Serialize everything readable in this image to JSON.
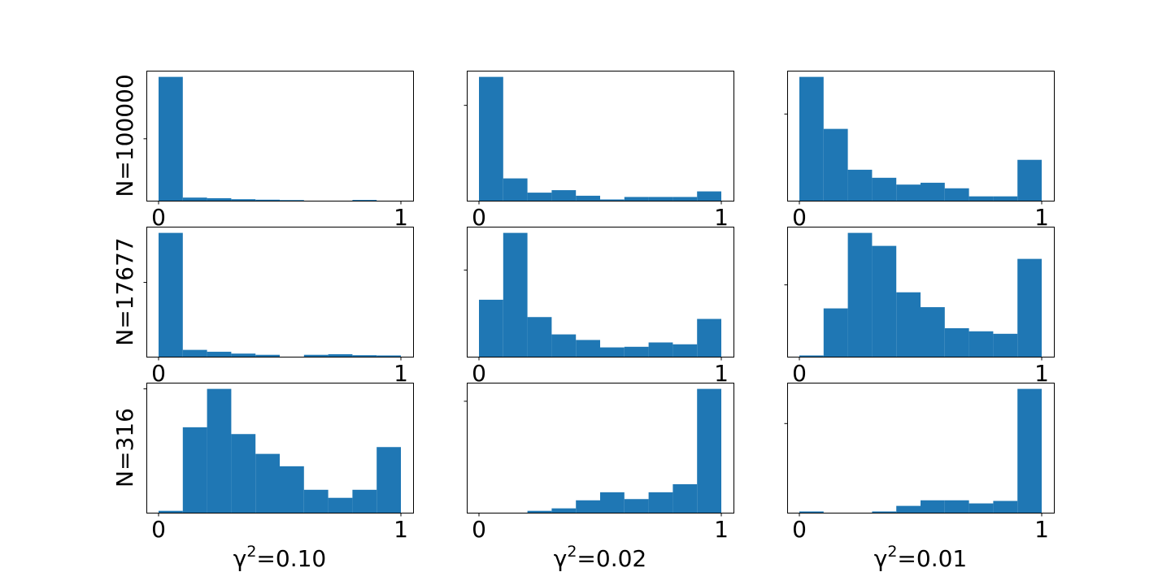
{
  "chart_data": {
    "type": "bar",
    "layout": "grid 3x3",
    "bar_color": "#1f77b4",
    "bins": 10,
    "x_range": [
      0,
      1
    ],
    "xticks": [
      0,
      1
    ],
    "xtick_labels": [
      "0",
      "1"
    ],
    "row_labels": [
      "N=100000",
      "N=17677",
      "N=316"
    ],
    "col_labels": [
      {
        "base": "γ",
        "sup": "2",
        "rest": "=0.10"
      },
      {
        "base": "γ",
        "sup": "2",
        "rest": "=0.02"
      },
      {
        "base": "γ",
        "sup": "2",
        "rest": "=0.01"
      }
    ],
    "panels": [
      {
        "row": 0,
        "col": 0,
        "ylim": [
          0,
          1.05
        ],
        "ytick": 0.5,
        "values": [
          1.0,
          0.025,
          0.02,
          0.012,
          0.008,
          0.005,
          0.0,
          0.0,
          0.006,
          0.0
        ]
      },
      {
        "row": 0,
        "col": 1,
        "ylim": [
          0,
          1.05
        ],
        "ytick": 0.77,
        "values": [
          1.0,
          0.18,
          0.065,
          0.085,
          0.04,
          0.01,
          0.03,
          0.03,
          0.03,
          0.075
        ]
      },
      {
        "row": 0,
        "col": 2,
        "ylim": [
          0,
          1.05
        ],
        "ytick": 0.7,
        "values": [
          1.0,
          0.58,
          0.25,
          0.185,
          0.13,
          0.145,
          0.1,
          0.035,
          0.035,
          0.33
        ]
      },
      {
        "row": 1,
        "col": 0,
        "ylim": [
          0,
          1.05
        ],
        "ytick": 0.6,
        "values": [
          1.0,
          0.055,
          0.04,
          0.025,
          0.015,
          0.0,
          0.015,
          0.02,
          0.012,
          0.01
        ]
      },
      {
        "row": 1,
        "col": 1,
        "ylim": [
          0,
          1.05
        ],
        "ytick": 0.7,
        "values": [
          0.46,
          1.0,
          0.32,
          0.18,
          0.135,
          0.075,
          0.08,
          0.115,
          0.1,
          0.305
        ]
      },
      {
        "row": 1,
        "col": 2,
        "ylim": [
          0,
          1.05
        ],
        "ytick": 0.58,
        "values": [
          0.01,
          0.39,
          1.0,
          0.895,
          0.52,
          0.4,
          0.23,
          0.205,
          0.185,
          0.79
        ]
      },
      {
        "row": 2,
        "col": 0,
        "ylim": [
          0,
          1.05
        ],
        "ytick": 1.0,
        "values": [
          0.015,
          0.69,
          1.0,
          0.635,
          0.475,
          0.375,
          0.185,
          0.12,
          0.185,
          0.53
        ]
      },
      {
        "row": 2,
        "col": 1,
        "ylim": [
          0,
          1.05
        ],
        "ytick": 0.9,
        "values": [
          0.0,
          0.0,
          0.015,
          0.035,
          0.1,
          0.165,
          0.11,
          0.165,
          0.23,
          1.0
        ]
      },
      {
        "row": 2,
        "col": 2,
        "ylim": [
          0,
          1.05
        ],
        "ytick": 0.72,
        "values": [
          0.01,
          0.0,
          0.0,
          0.01,
          0.055,
          0.1,
          0.1,
          0.075,
          0.095,
          1.0
        ]
      }
    ]
  }
}
